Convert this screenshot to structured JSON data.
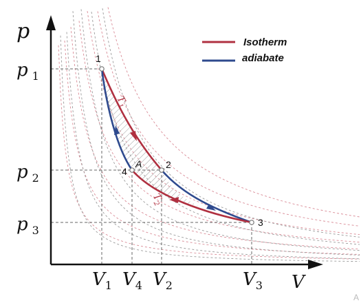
{
  "axes": {
    "y_label": "p",
    "x_label": "V"
  },
  "ticks": {
    "y": [
      {
        "base": "p",
        "sub": "1"
      },
      {
        "base": "p",
        "sub": "2"
      },
      {
        "base": "p",
        "sub": "3"
      }
    ],
    "x": [
      {
        "base": "V",
        "sub": "1"
      },
      {
        "base": "V",
        "sub": "4"
      },
      {
        "base": "V",
        "sub": "2"
      },
      {
        "base": "V",
        "sub": "3"
      }
    ]
  },
  "points": {
    "p1": "1",
    "p2": "2",
    "p3": "3",
    "p4": "4",
    "A": "A"
  },
  "curve_labels": {
    "t1_base": "T",
    "t1_sub": "1",
    "t2_base": "T",
    "t2_sub": "2"
  },
  "legend": {
    "isotherm": "Isotherm",
    "adiabate": "adiabate"
  },
  "colors": {
    "isotherm": "#b03040",
    "adiabate": "#2e4a8e",
    "guide": "#666666",
    "isotherm_bg": "#d98a95",
    "adiabate_bg": "#9a9a9a"
  },
  "corner_mark": "A"
}
